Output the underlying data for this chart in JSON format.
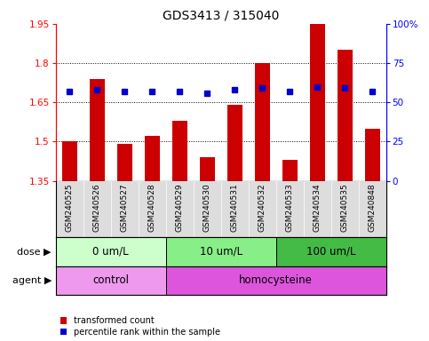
{
  "title": "GDS3413 / 315040",
  "samples": [
    "GSM240525",
    "GSM240526",
    "GSM240527",
    "GSM240528",
    "GSM240529",
    "GSM240530",
    "GSM240531",
    "GSM240532",
    "GSM240533",
    "GSM240534",
    "GSM240535",
    "GSM240848"
  ],
  "bar_values": [
    1.5,
    1.74,
    1.49,
    1.52,
    1.58,
    1.44,
    1.64,
    1.8,
    1.43,
    1.95,
    1.85,
    1.55
  ],
  "dot_values": [
    57,
    58,
    57,
    57,
    57,
    56,
    58,
    59,
    57,
    60,
    59,
    57
  ],
  "ylim_left": [
    1.35,
    1.95
  ],
  "ylim_right": [
    0,
    100
  ],
  "yticks_left": [
    1.35,
    1.5,
    1.65,
    1.8,
    1.95
  ],
  "yticks_right": [
    0,
    25,
    50,
    75,
    100
  ],
  "ytick_labels_right": [
    "0",
    "25",
    "50",
    "75",
    "100%"
  ],
  "bar_color": "#cc0000",
  "dot_color": "#0000cc",
  "grid_color": "#000000",
  "bg_color": "#ffffff",
  "sample_bg_color": "#dddddd",
  "dose_groups": [
    {
      "label": "0 um/L",
      "start": 0,
      "end": 4,
      "color": "#ccffcc"
    },
    {
      "label": "10 um/L",
      "start": 4,
      "end": 8,
      "color": "#88ee88"
    },
    {
      "label": "100 um/L",
      "start": 8,
      "end": 12,
      "color": "#44bb44"
    }
  ],
  "agent_groups": [
    {
      "label": "control",
      "start": 0,
      "end": 4,
      "color": "#ee99ee"
    },
    {
      "label": "homocysteine",
      "start": 4,
      "end": 12,
      "color": "#dd55dd"
    }
  ],
  "legend_red": "transformed count",
  "legend_blue": "percentile rank within the sample",
  "xlabel_dose": "dose",
  "xlabel_agent": "agent",
  "title_fontsize": 10,
  "tick_fontsize": 7.5,
  "label_fontsize": 8,
  "sample_fontsize": 6.5,
  "group_fontsize": 8.5
}
